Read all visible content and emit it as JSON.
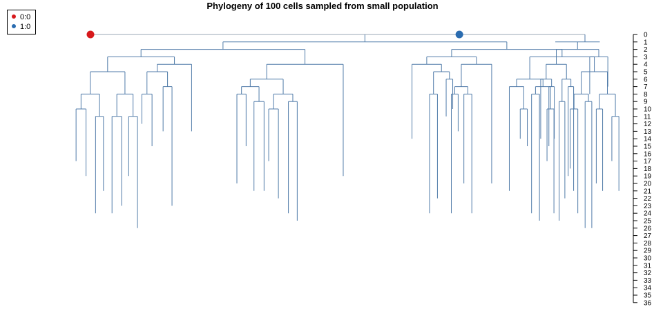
{
  "chart_data": {
    "type": "tree",
    "title": "Phylogeny of 100 cells sampled from small population",
    "legend": {
      "position": "top-left",
      "entries": [
        {
          "label": "0:0",
          "color": "#d7191c"
        },
        {
          "label": "1:0",
          "color": "#2b6cb0"
        }
      ]
    },
    "y_axis": {
      "side": "right",
      "reversed": true,
      "range": [
        0,
        36
      ],
      "ticks": [
        0,
        1,
        2,
        3,
        4,
        5,
        6,
        7,
        8,
        9,
        10,
        11,
        12,
        13,
        14,
        15,
        16,
        17,
        18,
        19,
        20,
        21,
        22,
        23,
        24,
        25,
        26,
        27,
        28,
        29,
        30,
        31,
        32,
        33,
        34,
        35,
        36
      ]
    },
    "markers": [
      {
        "label": "0:0",
        "color": "#d7191c",
        "x": 0.0,
        "depth": 0
      },
      {
        "label": "1:0",
        "color": "#2b6cb0",
        "x": 0.746,
        "depth": 0
      }
    ],
    "branch_color": "#4f7aa8",
    "root_color": "#9aa7b5"
  }
}
